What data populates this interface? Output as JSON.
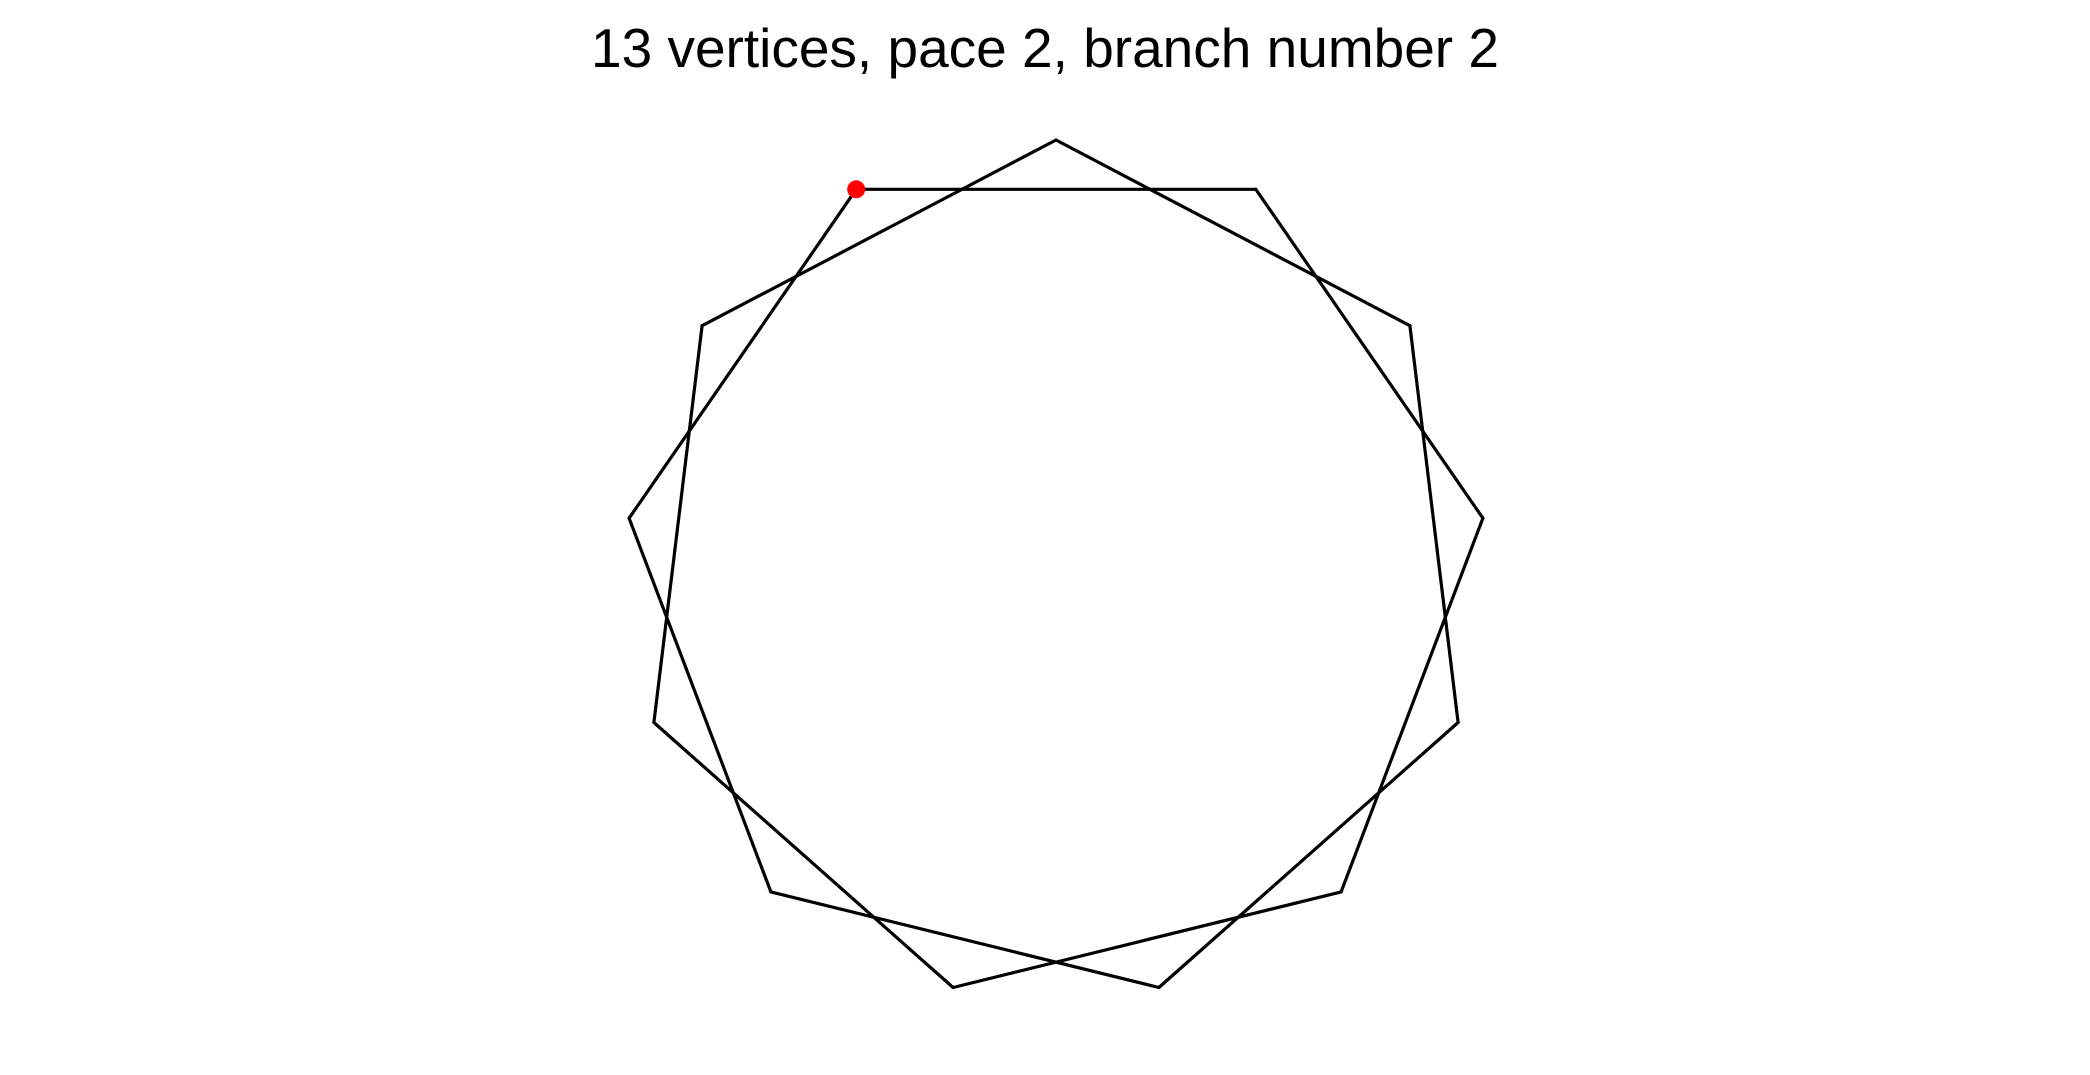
{
  "title": "13 vertices, pace 2, branch number 2",
  "figure": {
    "vertices": 13,
    "pace": 2,
    "start_marker_color": "#ff0000",
    "line_color": "#000000"
  }
}
